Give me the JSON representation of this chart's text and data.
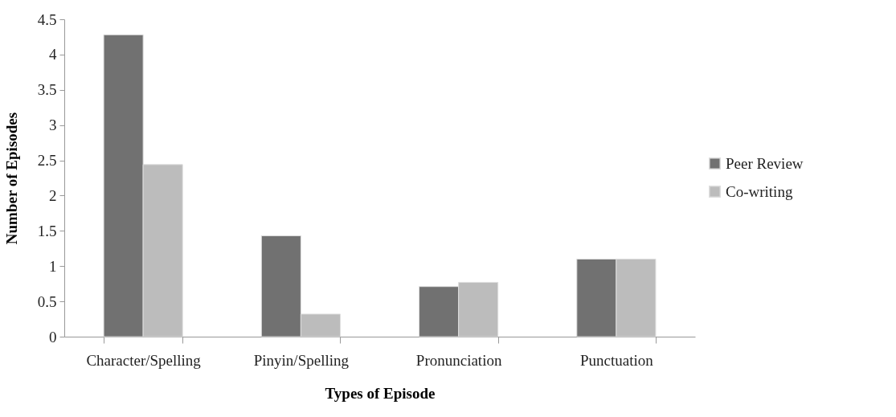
{
  "chart_data": {
    "type": "bar",
    "xlabel": "Types of Episode",
    "ylabel": "Number of Episodes",
    "categories": [
      "Character/Spelling",
      "Pinyin/Spelling",
      "Pronunciation",
      "Punctuation"
    ],
    "series": [
      {
        "name": "Peer Review",
        "color": "#717171",
        "values": [
          4.28,
          1.43,
          0.71,
          1.1
        ]
      },
      {
        "name": "Co-writing",
        "color": "#bcbcbc",
        "values": [
          2.44,
          0.32,
          0.77,
          1.1
        ]
      }
    ],
    "ylim": [
      0,
      4.5
    ],
    "yticks": [
      0,
      0.5,
      1,
      1.5,
      2,
      2.5,
      3,
      3.5,
      4,
      4.5
    ],
    "grid": false,
    "legend": "right"
  }
}
